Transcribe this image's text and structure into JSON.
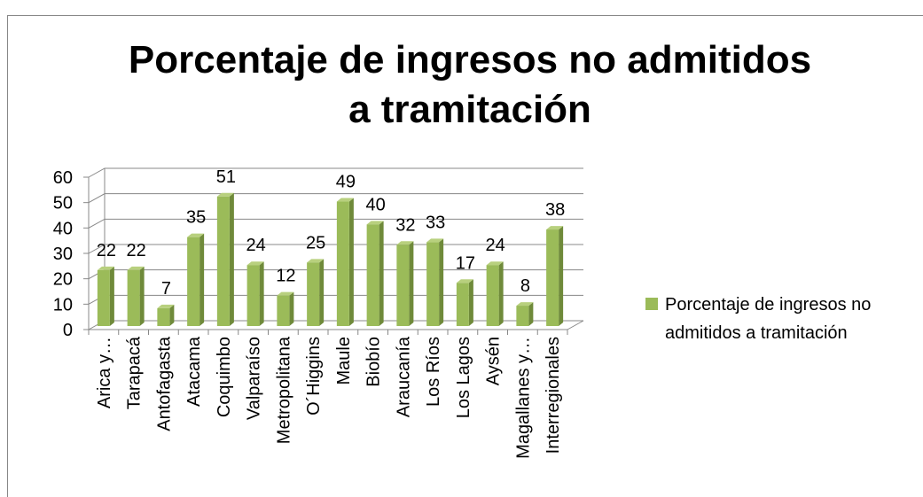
{
  "chart_data": {
    "type": "bar",
    "title": "Porcentaje de ingresos no admitidos a tramitación",
    "categories": [
      "Arica y…",
      "Tarapacá",
      "Antofagasta",
      "Atacama",
      "Coquimbo",
      "Valparaíso",
      "Metropolitana",
      "O´Higgins",
      "Maule",
      "Biobío",
      "Araucanía",
      "Los Ríos",
      "Los Lagos",
      "Aysén",
      "Magallanes y…",
      "Interregionales"
    ],
    "series": [
      {
        "name": "Porcentaje de ingresos no admitidos a tramitación",
        "color": "#9bbb59",
        "values": [
          22,
          22,
          7,
          35,
          51,
          24,
          12,
          25,
          49,
          40,
          32,
          33,
          17,
          24,
          8,
          38
        ]
      }
    ],
    "ylim": [
      0,
      60
    ],
    "yticks": [
      0,
      10,
      20,
      30,
      40,
      50,
      60
    ],
    "grid": true,
    "legend": "right"
  }
}
